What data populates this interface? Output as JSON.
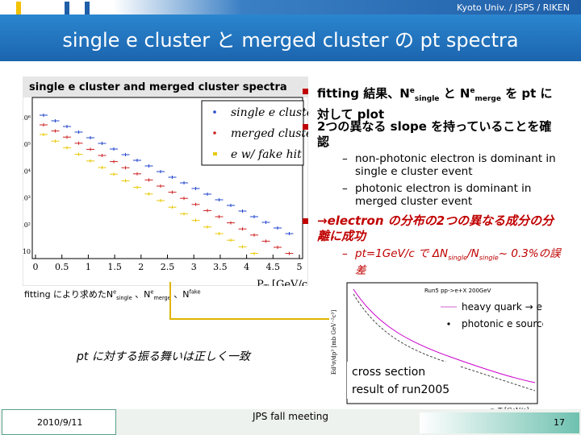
{
  "header": {
    "org": "Kyoto Univ. / JSPS / RIKEN",
    "title": "single e cluster と merged cluster の pt spectra"
  },
  "left_plot": {
    "title": "single e cluster and merged cluster spectra",
    "legend": [
      "single e cluster",
      "merged cluster",
      "e w/ fake hit"
    ],
    "yticks": [
      "10⁶",
      "10⁵",
      "10⁴",
      "10³",
      "10²",
      "10"
    ],
    "xticks": [
      "0",
      "0.5",
      "1",
      "1.5",
      "2",
      "2.5",
      "3",
      "3.5",
      "4",
      "4.5",
      "5"
    ],
    "xlabel": "P",
    "xlabel_sub": "T",
    "xlabel_unit": "[GeV/c]"
  },
  "fit_note": {
    "parts": [
      "fitting により求めたN",
      "e",
      "single",
      " 、N",
      "e",
      "merge",
      " 、N",
      "fake"
    ]
  },
  "arrow_note": "pt に対する振る舞いは正しく一致",
  "bullets": [
    {
      "parts": [
        "fitting 結果、N",
        "e",
        "single",
        " と N",
        "e",
        "merge",
        " を pt に対して plot"
      ]
    },
    {
      "parts": [
        "2つの異なる slope を持っていることを確認"
      ]
    },
    {
      "parts": [
        "→electron の分布の2つの異なる成分の分離に成功"
      ]
    }
  ],
  "sub_bullets": [
    {
      "parts": [
        "non-photonic electron is dominant in single e cluster event"
      ]
    },
    {
      "parts": [
        "photonic electron is dominant in merged cluster event"
      ]
    },
    {
      "parts": [
        "pt=1GeV/c で ΔN",
        "single",
        "/N",
        "single",
        "~ 0.3%の誤差"
      ]
    }
  ],
  "right_plot": {
    "run": "Run5 pp->e+X 200GeV",
    "legend": [
      "heavy quark → e",
      "photonic e sources"
    ],
    "ylabel": "Ed³σ/dp³ [mb GeV⁻²c³]",
    "xlabel": "p_T [GeV/c]",
    "caption": [
      "cross section",
      "result of run2005"
    ]
  },
  "footer": {
    "date": "2010/9/11",
    "meeting": "JPS fall meeting",
    "page": "17"
  }
}
